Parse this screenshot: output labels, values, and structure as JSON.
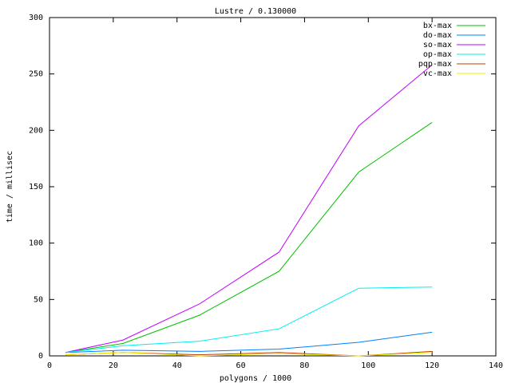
{
  "chart_data": {
    "type": "line",
    "title": "Lustre / 0.130000",
    "x_label": "polygons / 1000",
    "y_label": "time / millisec",
    "x": [
      5,
      23,
      47,
      72,
      97,
      120
    ],
    "series": [
      {
        "name": "bx-max",
        "color": "#00c000",
        "values": [
          3,
          11,
          36,
          75,
          163,
          207
        ]
      },
      {
        "name": "do-max",
        "color": "#0080ff",
        "values": [
          3,
          5,
          4,
          6,
          12,
          21
        ]
      },
      {
        "name": "so-max",
        "color": "#c000ff",
        "values": [
          3,
          14,
          46,
          92,
          204,
          258
        ]
      },
      {
        "name": "op-max",
        "color": "#00eeee",
        "values": [
          3,
          9,
          13,
          24,
          60,
          61
        ]
      },
      {
        "name": "pqp-max",
        "color": "#c04000",
        "values": [
          1,
          3,
          1,
          3,
          0,
          4
        ]
      },
      {
        "name": "vc-max",
        "color": "#eeee00",
        "values": [
          1,
          3,
          0,
          2,
          0,
          3
        ]
      }
    ],
    "xlim": [
      0,
      140
    ],
    "xticks": [
      0,
      20,
      40,
      60,
      80,
      100,
      120,
      140
    ],
    "ylim": [
      0,
      300
    ],
    "yticks": [
      0,
      50,
      100,
      150,
      200,
      250,
      300
    ],
    "legend": "top-right"
  }
}
